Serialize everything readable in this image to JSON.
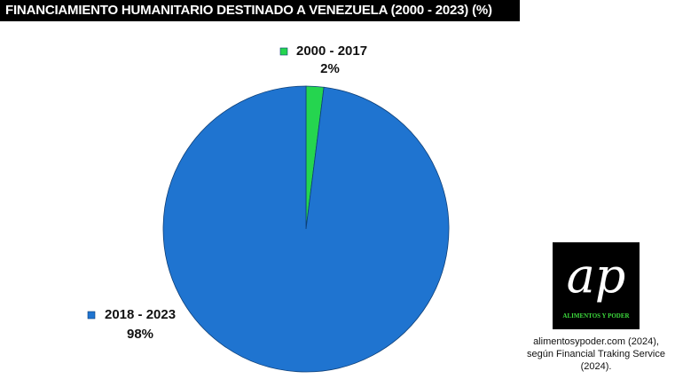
{
  "chart_data": {
    "type": "pie",
    "title": "FINANCIAMIENTO HUMANITARIO DESTINADO A VENEZUELA (2000 - 2023) (%)",
    "categories": [
      "2000 - 2017",
      "2018 - 2023"
    ],
    "values": [
      2,
      98
    ],
    "value_labels": [
      "2%",
      "98%"
    ],
    "colors": [
      "#25d54f",
      "#1f74d0"
    ]
  },
  "logo": {
    "mark": "ap",
    "name": "ALIMENTOS Y PODER"
  },
  "source": [
    "alimentosypoder.com (2024),",
    "según Financial Traking Service",
    "(2024)."
  ]
}
